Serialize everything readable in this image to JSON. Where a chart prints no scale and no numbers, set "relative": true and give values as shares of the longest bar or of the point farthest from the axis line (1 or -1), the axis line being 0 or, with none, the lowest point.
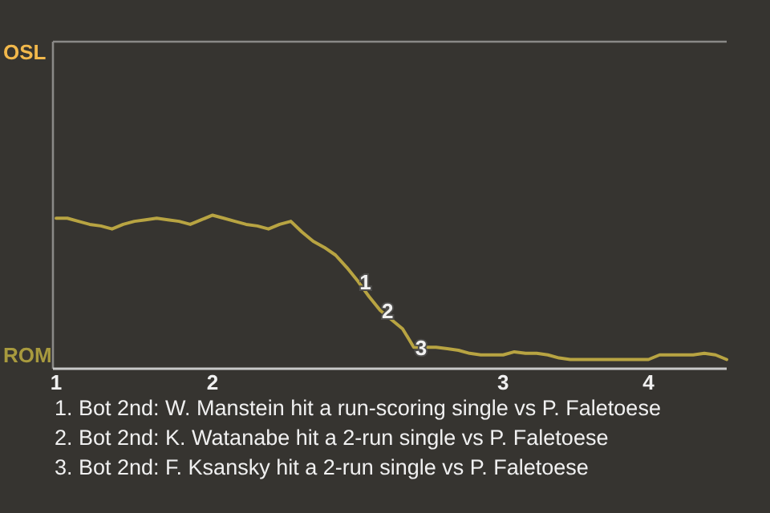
{
  "chart_data": {
    "type": "line",
    "relative": true,
    "categories": [
      "1",
      null,
      null,
      null,
      null,
      null,
      null,
      null,
      null,
      null,
      null,
      null,
      null,
      null,
      "2",
      null,
      null,
      null,
      null,
      null,
      null,
      null,
      null,
      null,
      null,
      null,
      null,
      null,
      null,
      null,
      null,
      null,
      null,
      null,
      null,
      null,
      null,
      null,
      null,
      null,
      "3",
      null,
      null,
      null,
      null,
      null,
      null,
      null,
      null,
      null,
      null,
      null,
      null,
      "4",
      null,
      null,
      null,
      null,
      null,
      null,
      null
    ],
    "marker": "none",
    "line_style": "solid",
    "series": [
      {
        "color": "#b8a442",
        "values": [
          0.98,
          0.98,
          0.96,
          0.94,
          0.93,
          0.91,
          0.94,
          0.96,
          0.97,
          0.98,
          0.97,
          0.96,
          0.94,
          0.97,
          1,
          0.98,
          0.96,
          0.94,
          0.93,
          0.91,
          0.94,
          0.96,
          0.89,
          0.83,
          0.79,
          0.74,
          0.66,
          0.57,
          0.47,
          0.38,
          0.32,
          0.26,
          0.14,
          0.14,
          0.14,
          0.13,
          0.12,
          0.1,
          0.09,
          0.09,
          0.09,
          0.11,
          0.1,
          0.1,
          0.09,
          0.07,
          0.06,
          0.06,
          0.06,
          0.06,
          0.06,
          0.06,
          0.06,
          0.06,
          0.09,
          0.09,
          0.09,
          0.09,
          0.1,
          0.09,
          0.06
        ]
      }
    ],
    "annotations": [
      "OSL",
      "ROM",
      {
        "text": "1",
        "y": 0.57
      },
      {
        "text": "2",
        "y": 0.38
      },
      {
        "text": "3",
        "y": 0.14
      },
      "1. Bot 2nd: W. Manstein hit a run-scoring single vs P. Faletoese",
      "2. Bot 2nd: K. Watanabe hit a 2-run single vs P. Faletoese",
      "3. Bot 2nd: F. Ksansky hit a 2-run single vs P. Faletoese"
    ]
  }
}
